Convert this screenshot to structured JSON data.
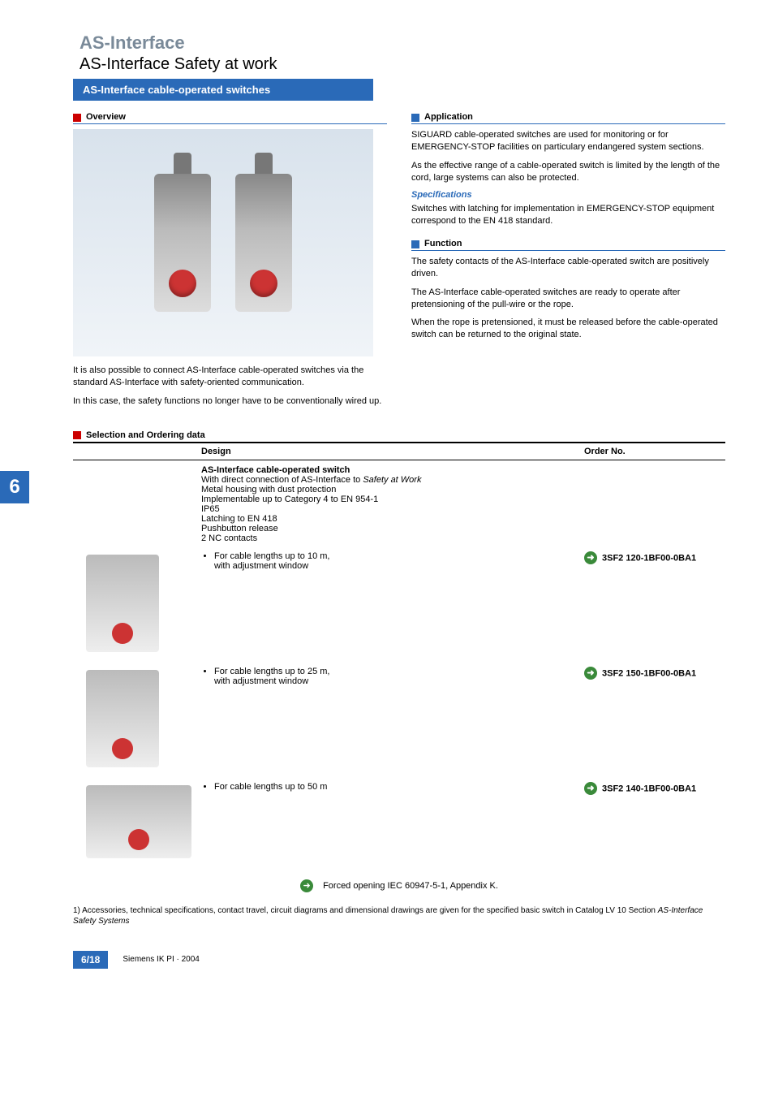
{
  "header": {
    "super_title": "AS-Interface",
    "sub_title": "AS-Interface Safety at work",
    "blue_bar": "AS-Interface cable-operated switches"
  },
  "side_tab": "6",
  "overview": {
    "heading": "Overview",
    "para1": "It is also possible to connect AS-Interface cable-operated switches via the standard AS-Interface with safety-oriented communication.",
    "para2": "In this case, the safety functions no longer have to be conventionally wired up."
  },
  "application": {
    "heading": "Application",
    "para1": "SIGUARD cable-operated switches are used for monitoring or for EMERGENCY-STOP facilities on particulary endangered system sections.",
    "para2": "As the effective range of a cable-operated switch is limited by the length of the cord, large systems can also be protected.",
    "spec_heading": "Specifications",
    "para3": "Switches with latching for implementation in EMERGENCY-STOP equipment correspond to the EN 418 standard."
  },
  "function": {
    "heading": "Function",
    "para1": "The safety contacts of the AS-Interface cable-operated switch are positively driven.",
    "para2": "The AS-Interface cable-operated switches are ready to operate after pretensioning of the pull-wire or the rope.",
    "para3": "When the rope is pretensioned, it must be released before the cable-operated switch can be returned to the original state."
  },
  "ordering": {
    "heading": "Selection and Ordering data",
    "col_design": "Design",
    "col_orderno": "Order No.",
    "intro_title": "AS-Interface cable-operated switch",
    "intro_lines": [
      "With direct connection of AS-Interface to Safety at Work",
      "Metal housing with dust protection",
      "Implementable up to Category 4 to EN 954-1",
      "IP65",
      "Latching to EN 418",
      "Pushbutton release",
      "2 NC contacts"
    ],
    "rows": [
      {
        "desc": "For cable lengths up to 10 m,\nwith adjustment window",
        "orderno": "3SF2 120-1BF00-0BA1"
      },
      {
        "desc": "For cable lengths up to 25 m,\nwith adjustment window",
        "orderno": "3SF2 150-1BF00-0BA1"
      },
      {
        "desc": "For cable lengths up to 50 m",
        "orderno": "3SF2 140-1BF00-0BA1"
      }
    ],
    "legend": "Forced opening IEC 60947-5-1, Appendix K."
  },
  "footnote": "1) Accessories, technical specifications, contact travel, circuit diagrams and dimensional drawings are given for the specified basic switch in Catalog LV 10 Section AS-Interface Safety Systems",
  "footer": {
    "page": "6/18",
    "catalog": "Siemens IK PI · 2004"
  },
  "colors": {
    "brand_blue": "#2a6ab8",
    "accent_red": "#c00000",
    "arrow_green": "#3a8a3a"
  }
}
